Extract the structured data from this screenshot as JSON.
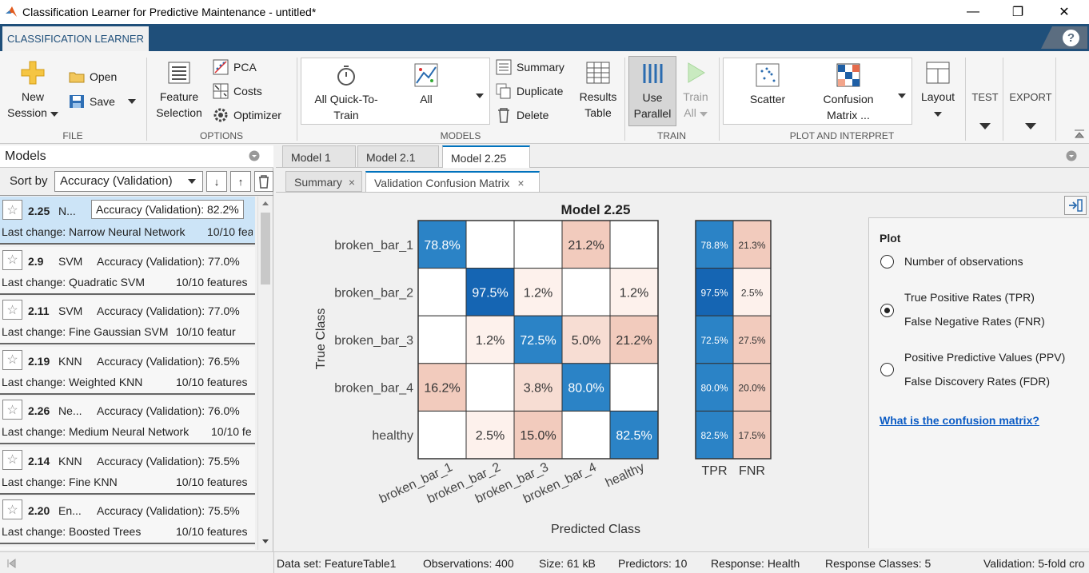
{
  "window": {
    "title": "Classification Learner for Predictive Maintenance - untitled*",
    "minimize": "—",
    "restore": "❐",
    "close": "✕"
  },
  "app_tab": "CLASSIFICATION LEARNER",
  "help": "?",
  "toolstrip": {
    "new_session": [
      "New",
      "Session"
    ],
    "open": "Open",
    "save": "Save",
    "file_section": "FILE",
    "feature_selection": [
      "Feature",
      "Selection"
    ],
    "pca": "PCA",
    "costs": "Costs",
    "optimizer": "Optimizer",
    "options_section": "OPTIONS",
    "all_quick": [
      "All Quick-To-",
      "Train"
    ],
    "all": "All",
    "summary": "Summary",
    "duplicate": "Duplicate",
    "delete": "Delete",
    "results_table": [
      "Results",
      "Table"
    ],
    "models_section": "MODELS",
    "use_parallel": [
      "Use",
      "Parallel"
    ],
    "train_all": [
      "Train",
      "All"
    ],
    "train_section": "TRAIN",
    "scatter": "Scatter",
    "confusion_matrix": [
      "Confusion",
      "Matrix",
      "..."
    ],
    "layout": "Layout",
    "plot_section": "PLOT AND INTERPRET",
    "test": "TEST",
    "export": "EXPORT"
  },
  "models_panel": {
    "title": "Models",
    "sort_label": "Sort by",
    "sort_value": "Accuracy (Validation)",
    "items": [
      {
        "num": "2.25",
        "type": "N...",
        "acc": "Accuracy (Validation): 82.2%",
        "last": "Last change: Narrow Neural Network",
        "feat": "10/10 fea",
        "selected": true
      },
      {
        "num": "2.9",
        "type": "SVM",
        "acc": "Accuracy (Validation): 77.0%",
        "last": "Last change: Quadratic SVM",
        "feat": "10/10 features"
      },
      {
        "num": "2.11",
        "type": "SVM",
        "acc": "Accuracy (Validation): 77.0%",
        "last": "Last change: Fine Gaussian SVM",
        "feat": "10/10 featur"
      },
      {
        "num": "2.19",
        "type": "KNN",
        "acc": "Accuracy (Validation): 76.5%",
        "last": "Last change: Weighted KNN",
        "feat": "10/10 features"
      },
      {
        "num": "2.26",
        "type": "Ne...",
        "acc": "Accuracy (Validation): 76.0%",
        "last": "Last change: Medium Neural Network",
        "feat": "10/10 fe"
      },
      {
        "num": "2.14",
        "type": "KNN",
        "acc": "Accuracy (Validation): 75.5%",
        "last": "Last change: Fine KNN",
        "feat": "10/10 features"
      },
      {
        "num": "2.20",
        "type": "En...",
        "acc": "Accuracy (Validation): 75.5%",
        "last": "Last change: Boosted Trees",
        "feat": "10/10 features"
      }
    ]
  },
  "doc_tabs": [
    "Model 1",
    "Model 2.1",
    "Model 2.25"
  ],
  "sub_tabs": [
    "Summary",
    "Validation Confusion Matrix"
  ],
  "chart_data": {
    "type": "heatmap",
    "title": "Model 2.25",
    "xlabel": "Predicted Class",
    "ylabel": "True Class",
    "classes": [
      "broken_bar_1",
      "broken_bar_2",
      "broken_bar_3",
      "broken_bar_4",
      "healthy"
    ],
    "matrix": [
      [
        "78.8%",
        "",
        "",
        "21.2%",
        ""
      ],
      [
        "",
        "97.5%",
        "1.2%",
        "",
        "1.2%"
      ],
      [
        "",
        "1.2%",
        "72.5%",
        "5.0%",
        "21.2%"
      ],
      [
        "16.2%",
        "",
        "3.8%",
        "80.0%",
        ""
      ],
      [
        "",
        "2.5%",
        "15.0%",
        "",
        "82.5%"
      ]
    ],
    "tpr_label": "TPR",
    "fnr_label": "FNR",
    "tpr": [
      "78.8%",
      "97.5%",
      "72.5%",
      "80.0%",
      "82.5%"
    ],
    "fnr": [
      "21.3%",
      "2.5%",
      "27.5%",
      "20.0%",
      "17.5%"
    ],
    "colors": {
      "diag": "#2b83c6",
      "diag_dark": "#1565b3",
      "off_strong": "#f2cbbd",
      "off_mid": "#f7ddd3",
      "off_light": "#fdf1ec"
    }
  },
  "plot_options": {
    "heading": "Plot",
    "opt1": "Number of observations",
    "opt2a": "True Positive Rates (TPR)",
    "opt2b": "False Negative Rates (FNR)",
    "opt3a": "Positive Predictive Values (PPV)",
    "opt3b": "False Discovery Rates (FDR)",
    "link": "What is the confusion matrix?"
  },
  "status": {
    "dataset": "Data set: FeatureTable1",
    "obs": "Observations: 400",
    "size": "Size: 61 kB",
    "pred": "Predictors: 10",
    "resp": "Response: Health",
    "classes": "Response Classes: 5",
    "valid": "Validation: 5-fold cro"
  }
}
